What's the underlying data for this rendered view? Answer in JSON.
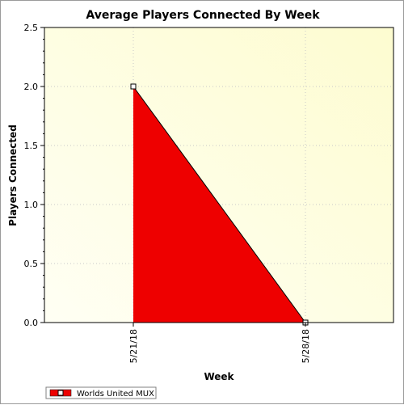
{
  "chart_data": {
    "type": "area",
    "title": "Average Players Connected By Week",
    "xlabel": "Week",
    "ylabel": "Players Connected",
    "categories": [
      "5/21/18",
      "5/28/18"
    ],
    "ylim": [
      0,
      2.5
    ],
    "yticks": [
      "0.0",
      "0.5",
      "1.0",
      "1.5",
      "2.0",
      "2.5"
    ],
    "series": [
      {
        "name": "Worlds United MUX",
        "values": [
          2.0,
          0.0
        ],
        "color": "#ee0000"
      }
    ],
    "grid": true,
    "legend": "bottom-left",
    "plot_background": [
      "#fffff4",
      "#fdfcd0"
    ]
  }
}
